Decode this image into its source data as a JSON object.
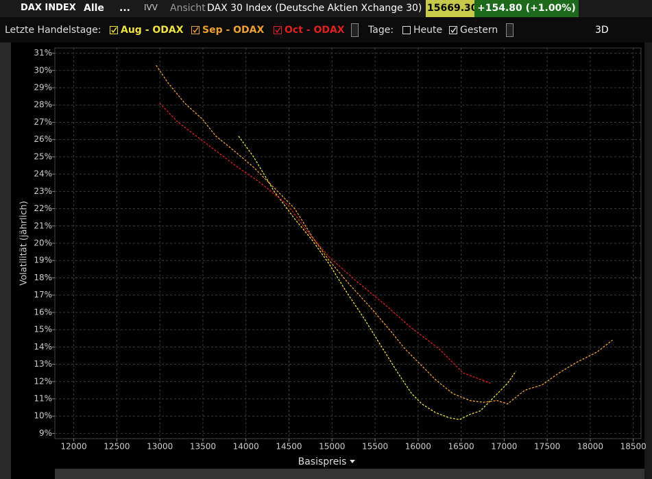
{
  "header": {
    "symbol": "DAX INDEX",
    "filter": "Alle",
    "more": "...",
    "exchange": "IVV",
    "view": "Ansicht",
    "description": "DAX 30 Index (Deutsche Aktien Xchange 30)",
    "price": "15669.30",
    "change": "+154.80 (+1.00%)"
  },
  "toolbar": {
    "label": "Letzte Handelstage:",
    "days_label": "Tage:",
    "days": [
      {
        "label": "Heute",
        "checked": false
      },
      {
        "label": "Gestern",
        "checked": true
      }
    ],
    "mode": "3D"
  },
  "chart_data": {
    "type": "line",
    "x_label": "Basispreis",
    "y_label": "Volatilität (jährlich)",
    "xlim": [
      11780,
      18590
    ],
    "xticks": [
      12000,
      12500,
      13000,
      13500,
      14000,
      14500,
      15000,
      15500,
      16000,
      16500,
      17000,
      17500,
      18000,
      18500
    ],
    "ylim": [
      8.7,
      31.3
    ],
    "yticks": [
      {
        "value": 9,
        "label": "9%"
      },
      {
        "value": 10,
        "label": "10%"
      },
      {
        "value": 11,
        "label": "11%"
      },
      {
        "value": 12,
        "label": "12%"
      },
      {
        "value": 13,
        "label": "13%"
      },
      {
        "value": 14,
        "label": "14%"
      },
      {
        "value": 15,
        "label": "15%"
      },
      {
        "value": 16,
        "label": "16%"
      },
      {
        "value": 17,
        "label": "17%"
      },
      {
        "value": 18,
        "label": "18%"
      },
      {
        "value": 19,
        "label": "19%"
      },
      {
        "value": 20,
        "label": "20%"
      },
      {
        "value": 21,
        "label": "21%"
      },
      {
        "value": 22,
        "label": "22%"
      },
      {
        "value": 23,
        "label": "23%"
      },
      {
        "value": 24,
        "label": "24%"
      },
      {
        "value": 25,
        "label": "25%"
      },
      {
        "value": 26,
        "label": "26%"
      },
      {
        "value": 27,
        "label": "27%"
      },
      {
        "value": 28,
        "label": "28%"
      },
      {
        "value": 29,
        "label": "29%"
      },
      {
        "value": 30,
        "label": "30%"
      },
      {
        "value": 31,
        "label": "31%"
      }
    ],
    "grid": true,
    "series": [
      {
        "name": "Aug - ODAX",
        "color": "#f0e040",
        "x": [
          13914,
          14089,
          14329,
          14568,
          14767,
          14967,
          15166,
          15366,
          15565,
          15765,
          15925,
          16045,
          16204,
          16364,
          16482,
          16603,
          16722,
          16882,
          17040,
          17136
        ],
        "values": [
          26.2,
          25.0,
          23.0,
          21.4,
          20.2,
          18.8,
          17.2,
          15.7,
          14.1,
          12.5,
          11.3,
          10.7,
          10.2,
          9.9,
          9.8,
          10.1,
          10.3,
          11.1,
          11.9,
          12.6
        ]
      },
      {
        "name": "Sep - ODAX",
        "color": "#f0a030",
        "x": [
          12957,
          13092,
          13290,
          13490,
          13651,
          13850,
          14089,
          14329,
          14568,
          14767,
          14967,
          15206,
          15445,
          15685,
          15845,
          16005,
          16204,
          16404,
          16603,
          16761,
          16920,
          17040,
          17240,
          17439,
          17638,
          17837,
          18077,
          18260
        ],
        "values": [
          30.3,
          29.3,
          28.1,
          27.2,
          26.2,
          25.4,
          24.4,
          23.2,
          22.0,
          20.4,
          19.0,
          17.6,
          16.3,
          14.9,
          13.9,
          13.1,
          12.1,
          11.3,
          10.9,
          10.8,
          10.9,
          10.7,
          11.5,
          11.8,
          12.5,
          13.1,
          13.7,
          14.4
        ]
      },
      {
        "name": "Oct - ODAX",
        "color": "#e02020",
        "x": [
          12997,
          13212,
          13531,
          13850,
          14169,
          14488,
          14727,
          14967,
          15285,
          15604,
          15923,
          16242,
          16522,
          16840
        ],
        "values": [
          28.1,
          27.0,
          25.8,
          24.6,
          23.5,
          22.2,
          20.6,
          19.2,
          17.8,
          16.5,
          15.1,
          13.9,
          12.5,
          11.9
        ]
      }
    ]
  }
}
